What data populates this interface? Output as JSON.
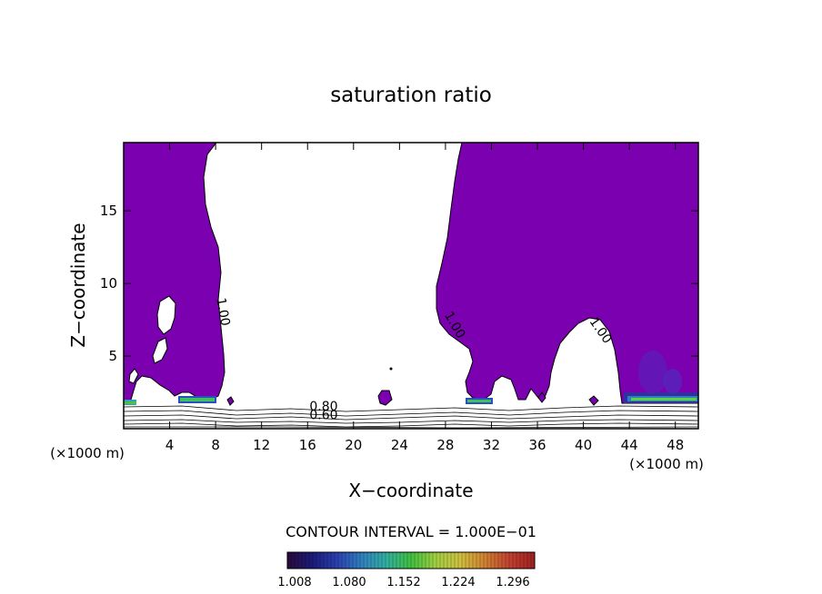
{
  "chart_data": {
    "type": "heatmap",
    "title": "saturation ratio",
    "xlabel": "X−coordinate",
    "ylabel": "Z−coordinate",
    "x_unit_left": "(×1000 m)",
    "x_unit_right": "(×1000 m)",
    "xlim": [
      0,
      50
    ],
    "ylim": [
      0,
      19.7
    ],
    "x_ticks": [
      4,
      8,
      12,
      16,
      20,
      24,
      28,
      32,
      36,
      40,
      44,
      48
    ],
    "y_ticks": [
      5,
      10,
      15
    ],
    "contour_labels": [
      {
        "text": "1.00",
        "x": 8.3,
        "z": 8.0,
        "angle": 80
      },
      {
        "text": "1.00",
        "x": 28.5,
        "z": 7.0,
        "angle": 60
      },
      {
        "text": "1.00",
        "x": 41.2,
        "z": 6.6,
        "angle": 55
      },
      {
        "text": "0.80",
        "x": 17.4,
        "z": 1.25,
        "angle": 0
      },
      {
        "text": "0.60",
        "x": 17.4,
        "z": 0.65,
        "angle": 0
      }
    ],
    "contour_interval_text": "CONTOUR INTERVAL = 1.000E−01",
    "colorbar": {
      "ticks": [
        "1.008",
        "1.080",
        "1.152",
        "1.224",
        "1.296"
      ],
      "colors": [
        "#2a0a3a",
        "#1a1a7a",
        "#2a40b0",
        "#3080c0",
        "#30b0a0",
        "#40c040",
        "#a0d040",
        "#d0c040",
        "#d08030",
        "#c04030",
        "#a02020"
      ]
    },
    "fill_color": "#7a00b0"
  }
}
